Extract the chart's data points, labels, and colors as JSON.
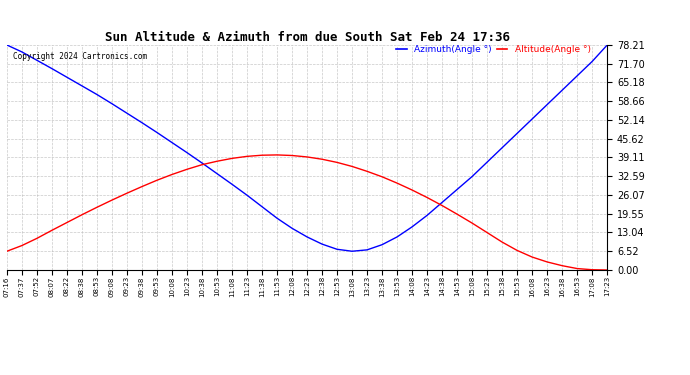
{
  "title": "Sun Altitude & Azimuth from due South Sat Feb 24 17:36",
  "copyright": "Copyright 2024 Cartronics.com",
  "legend_azimuth": "Azimuth(Angle °)",
  "legend_altitude": "Altitude(Angle °)",
  "azimuth_color": "blue",
  "altitude_color": "red",
  "background_color": "#ffffff",
  "grid_color": "#bbbbbb",
  "yticks": [
    0.0,
    6.52,
    13.04,
    19.55,
    26.07,
    32.59,
    39.11,
    45.62,
    52.14,
    58.66,
    65.18,
    71.7,
    78.21
  ],
  "time_labels": [
    "07:16",
    "07:37",
    "07:52",
    "08:07",
    "08:22",
    "08:38",
    "08:53",
    "09:08",
    "09:23",
    "09:38",
    "09:53",
    "10:08",
    "10:23",
    "10:38",
    "10:53",
    "11:08",
    "11:23",
    "11:38",
    "11:53",
    "12:08",
    "12:23",
    "12:38",
    "12:53",
    "13:08",
    "13:23",
    "13:38",
    "13:53",
    "14:08",
    "14:23",
    "14:38",
    "14:53",
    "15:08",
    "15:23",
    "15:38",
    "15:53",
    "16:08",
    "16:23",
    "16:38",
    "16:53",
    "17:08",
    "17:23"
  ],
  "azimuth_values": [
    78.21,
    75.8,
    72.9,
    70.0,
    67.0,
    64.0,
    61.0,
    57.8,
    54.5,
    51.2,
    47.8,
    44.3,
    40.8,
    37.2,
    33.5,
    29.8,
    26.0,
    22.0,
    18.0,
    14.5,
    11.5,
    9.0,
    7.2,
    6.52,
    7.0,
    8.8,
    11.5,
    15.0,
    19.0,
    23.5,
    28.0,
    32.5,
    37.5,
    42.5,
    47.5,
    52.5,
    57.5,
    62.5,
    67.5,
    72.5,
    78.21
  ],
  "altitude_values": [
    6.52,
    8.5,
    11.0,
    13.8,
    16.5,
    19.2,
    21.8,
    24.3,
    26.7,
    29.0,
    31.2,
    33.2,
    35.0,
    36.6,
    37.8,
    38.8,
    39.5,
    39.9,
    40.0,
    39.8,
    39.3,
    38.5,
    37.4,
    36.0,
    34.3,
    32.4,
    30.2,
    27.8,
    25.2,
    22.4,
    19.4,
    16.3,
    13.0,
    9.7,
    6.8,
    4.5,
    2.8,
    1.5,
    0.5,
    0.1,
    0.0
  ],
  "ylim": [
    0.0,
    78.21
  ],
  "figsize": [
    6.9,
    3.75
  ],
  "dpi": 100
}
